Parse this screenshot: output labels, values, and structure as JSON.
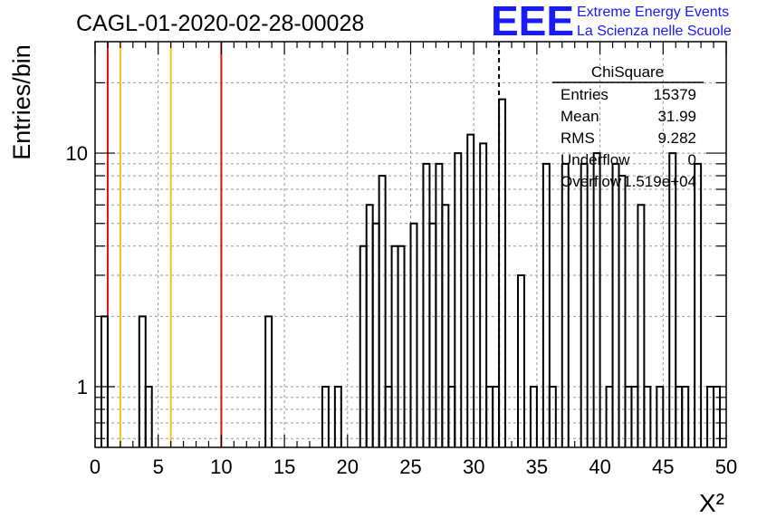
{
  "chart_data": {
    "type": "bar",
    "title": "CAGL-01-2020-02-28-00028",
    "xlabel": "X²",
    "ylabel": "Entries/bin",
    "xlim": [
      0,
      50
    ],
    "ylim": [
      0.55,
      30
    ],
    "yscale": "log",
    "bin_width": 0.5,
    "grid": true,
    "series": [
      {
        "bins": [
          {
            "x": 0.5,
            "y": 2
          },
          {
            "x": 3.5,
            "y": 2
          },
          {
            "x": 4.0,
            "y": 1
          },
          {
            "x": 13.5,
            "y": 2
          },
          {
            "x": 18.0,
            "y": 1
          },
          {
            "x": 19.0,
            "y": 1
          },
          {
            "x": 21.0,
            "y": 4
          },
          {
            "x": 21.5,
            "y": 6
          },
          {
            "x": 22.0,
            "y": 5
          },
          {
            "x": 22.5,
            "y": 8
          },
          {
            "x": 23.0,
            "y": 1
          },
          {
            "x": 23.5,
            "y": 4
          },
          {
            "x": 24.0,
            "y": 4
          },
          {
            "x": 25.0,
            "y": 5
          },
          {
            "x": 26.0,
            "y": 9
          },
          {
            "x": 26.5,
            "y": 5
          },
          {
            "x": 27.0,
            "y": 9
          },
          {
            "x": 27.5,
            "y": 6
          },
          {
            "x": 28.0,
            "y": 1
          },
          {
            "x": 28.5,
            "y": 10
          },
          {
            "x": 29.5,
            "y": 12
          },
          {
            "x": 30.5,
            "y": 11
          },
          {
            "x": 31.0,
            "y": 1
          },
          {
            "x": 31.5,
            "y": 1
          },
          {
            "x": 32.0,
            "y": 17
          },
          {
            "x": 33.5,
            "y": 3
          },
          {
            "x": 34.5,
            "y": 1
          },
          {
            "x": 35.5,
            "y": 9
          },
          {
            "x": 36.0,
            "y": 1
          },
          {
            "x": 37.0,
            "y": 9
          },
          {
            "x": 38.5,
            "y": 9
          },
          {
            "x": 39.5,
            "y": 10
          },
          {
            "x": 40.5,
            "y": 1
          },
          {
            "x": 41.0,
            "y": 9
          },
          {
            "x": 41.5,
            "y": 8
          },
          {
            "x": 42.0,
            "y": 1
          },
          {
            "x": 42.5,
            "y": 1
          },
          {
            "x": 43.0,
            "y": 6
          },
          {
            "x": 43.5,
            "y": 1
          },
          {
            "x": 44.5,
            "y": 1
          },
          {
            "x": 45.5,
            "y": 10
          },
          {
            "x": 46.0,
            "y": 1
          },
          {
            "x": 46.5,
            "y": 1
          },
          {
            "x": 47.5,
            "y": 9
          },
          {
            "x": 48.5,
            "y": 1
          },
          {
            "x": 49.0,
            "y": 1
          }
        ]
      }
    ],
    "xticks": [
      "0",
      "5",
      "10",
      "15",
      "20",
      "25",
      "30",
      "35",
      "40",
      "45",
      "50"
    ],
    "yticks": [
      {
        "value": 1,
        "label": "1"
      },
      {
        "value": 10,
        "label": "10"
      }
    ],
    "reference_lines": [
      {
        "x": 1,
        "color": "#e01010"
      },
      {
        "x": 2,
        "color": "#f2c21b"
      },
      {
        "x": 6,
        "color": "#f2c21b"
      },
      {
        "x": 10,
        "color": "#e01010"
      }
    ],
    "mean_line": {
      "x": 32
    },
    "legend": {
      "header": "ChiSquare",
      "rows": [
        {
          "label": "Entries",
          "value": "15379"
        },
        {
          "label": "Mean",
          "value": "31.99"
        },
        {
          "label": "RMS",
          "value": "9.282"
        },
        {
          "label": "Underflow",
          "value": "0"
        },
        {
          "label": "Overflow",
          "value": "1.519e+04"
        }
      ]
    }
  },
  "logo": {
    "mark": "EEE",
    "line1": "Extreme Energy Events",
    "line2": "La Scienza nelle Scuole",
    "color": "#1a1aff"
  }
}
